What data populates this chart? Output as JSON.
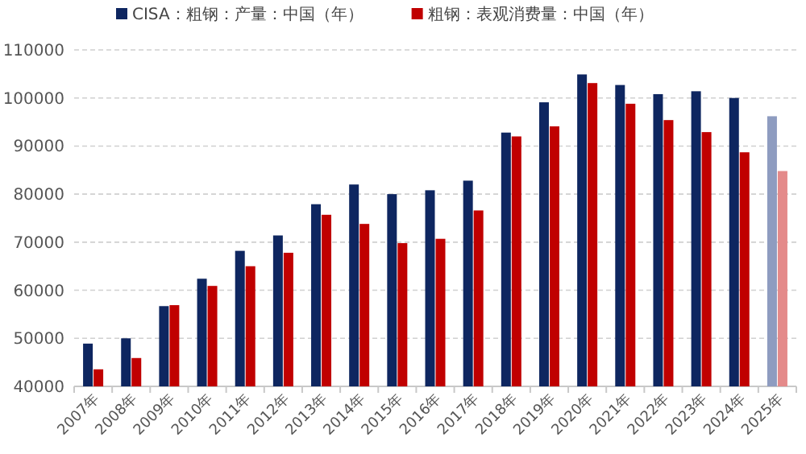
{
  "chart_data": {
    "type": "bar",
    "categories": [
      "2007年",
      "2008年",
      "2009年",
      "2010年",
      "2011年",
      "2012年",
      "2013年",
      "2014年",
      "2015年",
      "2016年",
      "2017年",
      "2018年",
      "2019年",
      "2020年",
      "2021年",
      "2022年",
      "2023年",
      "2024年",
      "2025年"
    ],
    "series": [
      {
        "name": "CISA：粗钢：产量：中国（年）",
        "color": "#0e2660",
        "colors": [
          "#0e2660",
          "#0e2660",
          "#0e2660",
          "#0e2660",
          "#0e2660",
          "#0e2660",
          "#0e2660",
          "#0e2660",
          "#0e2660",
          "#0e2660",
          "#0e2660",
          "#0e2660",
          "#0e2660",
          "#0e2660",
          "#0e2660",
          "#0e2660",
          "#0e2660",
          "#0e2660",
          "#8e9cc0"
        ],
        "values": [
          48900,
          50000,
          56700,
          62400,
          68200,
          71400,
          77900,
          82000,
          80000,
          80800,
          82800,
          92800,
          99100,
          104900,
          102700,
          100800,
          101400,
          100000,
          96200
        ]
      },
      {
        "name": "粗钢：表观消费量：中国（年）",
        "color": "#c00000",
        "colors": [
          "#c00000",
          "#c00000",
          "#c00000",
          "#c00000",
          "#c00000",
          "#c00000",
          "#c00000",
          "#c00000",
          "#c00000",
          "#c00000",
          "#c00000",
          "#c00000",
          "#c00000",
          "#c00000",
          "#c00000",
          "#c00000",
          "#c00000",
          "#c00000",
          "#e48a8a"
        ],
        "values": [
          43550,
          45900,
          56900,
          60900,
          65000,
          67800,
          75700,
          73800,
          69800,
          70700,
          76600,
          92000,
          94100,
          103100,
          98800,
          95400,
          92900,
          88700,
          84800
        ]
      }
    ],
    "ylim": [
      40000,
      110000
    ],
    "yticks": [
      40000,
      50000,
      60000,
      70000,
      80000,
      90000,
      100000,
      110000
    ],
    "grid": "y",
    "legend": "top"
  }
}
